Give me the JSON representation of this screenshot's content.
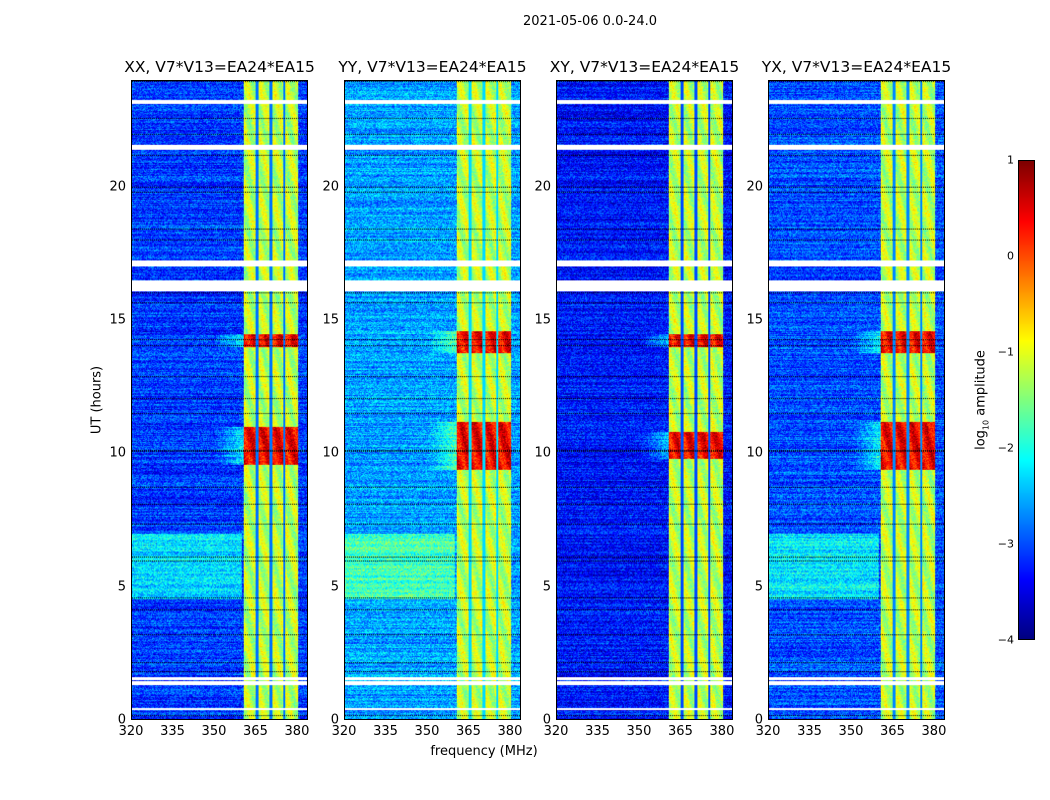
{
  "chart_data": {
    "type": "heatmap",
    "title": "2021-05-06 0.0-24.0",
    "xlabel": "frequency (MHz)",
    "ylabel": "UT (hours)",
    "xlim": [
      320,
      384
    ],
    "ylim": [
      0,
      24
    ],
    "xticks": [
      "320",
      "335",
      "350",
      "365",
      "380"
    ],
    "xtick_values": [
      320,
      335,
      350,
      365,
      380
    ],
    "yticks": [
      "0",
      "5",
      "10",
      "15",
      "20"
    ],
    "ytick_values": [
      0,
      5,
      10,
      15,
      20
    ],
    "colormap": "jet",
    "colorbar": {
      "label_main": "log",
      "label_sub": "10",
      "label_rest": " amplitude",
      "range": [
        -4,
        1
      ],
      "ticks": [
        "1",
        "0",
        "−1",
        "−2",
        "−3",
        "−4"
      ],
      "tick_values": [
        1,
        0,
        -1,
        -2,
        -3,
        -4
      ]
    },
    "panels": [
      {
        "title": "XX, V7*V13=EA24*EA15",
        "baseline_log_amp": -3.1,
        "rfi_peak_hours": [
          [
            9.6,
            11.0
          ],
          [
            14.0,
            14.5
          ]
        ]
      },
      {
        "title": "YY, V7*V13=EA24*EA15",
        "baseline_log_amp": -2.6,
        "rfi_peak_hours": [
          [
            9.4,
            11.2
          ],
          [
            13.8,
            14.6
          ]
        ]
      },
      {
        "title": "XY, V7*V13=EA24*EA15",
        "baseline_log_amp": -3.3,
        "rfi_peak_hours": [
          [
            9.8,
            10.8
          ],
          [
            14.0,
            14.5
          ]
        ]
      },
      {
        "title": "YX, V7*V13=EA24*EA15",
        "baseline_log_amp": -3.0,
        "rfi_peak_hours": [
          [
            9.4,
            11.2
          ],
          [
            13.8,
            14.6
          ]
        ]
      }
    ],
    "rfi_band_mhz": [
      360.5,
      380.5
    ],
    "rfi_band_gaps_mhz": [
      365.5,
      370.5,
      375.5
    ],
    "rfi_band_log_amp": -1.2,
    "flagged_hours": [
      [
        23.15,
        23.3
      ],
      [
        21.45,
        21.6
      ],
      [
        17.05,
        17.25
      ],
      [
        16.1,
        16.5
      ],
      [
        1.3,
        1.45
      ],
      [
        1.5,
        1.6
      ],
      [
        0.35,
        0.42
      ]
    ]
  }
}
